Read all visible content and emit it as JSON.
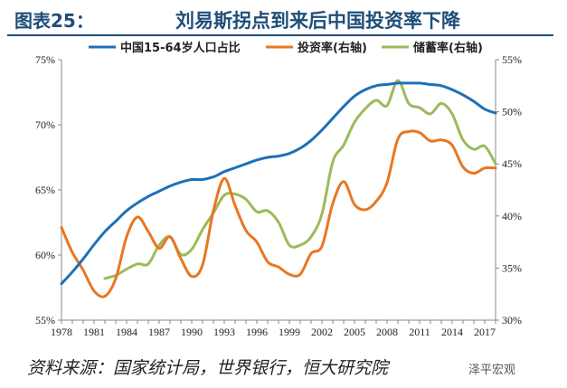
{
  "figure": {
    "number": "图表25：",
    "title": "刘易斯拐点到来后中国投资率下降"
  },
  "source_note": "资料来源：国家统计局，世界银行，恒大研究院",
  "watermark": "泽平宏观",
  "colors": {
    "title": "#1f4e79",
    "working_age": "#1f6fb8",
    "investment": "#e87722",
    "savings": "#9bbb59"
  },
  "chart_data": {
    "type": "line",
    "title": "",
    "xlabel": "",
    "ylabel": "",
    "x_ticks": [
      "1978",
      "1981",
      "1984",
      "1987",
      "1990",
      "1993",
      "1996",
      "1999",
      "2002",
      "2005",
      "2008",
      "2011",
      "2014",
      "2017"
    ],
    "xlim": [
      1978,
      2018
    ],
    "y_left": {
      "lim": [
        55,
        75
      ],
      "ticks": [
        "55%",
        "60%",
        "65%",
        "70%",
        "75%"
      ],
      "values": [
        55,
        60,
        65,
        70,
        75
      ]
    },
    "y_right": {
      "lim": [
        30,
        55
      ],
      "ticks": [
        "30%",
        "35%",
        "40%",
        "45%",
        "50%",
        "55%"
      ],
      "values": [
        30,
        35,
        40,
        45,
        50,
        55
      ]
    },
    "legend": {
      "position": "top"
    },
    "grid": false,
    "series": [
      {
        "name": "中国15-64岁人口占比",
        "axis": "left",
        "color": "#1f6fb8",
        "x": [
          1978,
          1979,
          1980,
          1981,
          1982,
          1983,
          1984,
          1985,
          1986,
          1987,
          1988,
          1989,
          1990,
          1991,
          1992,
          1993,
          1994,
          1995,
          1996,
          1997,
          1998,
          1999,
          2000,
          2001,
          2002,
          2003,
          2004,
          2005,
          2006,
          2007,
          2008,
          2009,
          2010,
          2011,
          2012,
          2013,
          2014,
          2015,
          2016,
          2017,
          2018
        ],
        "y": [
          57.8,
          58.7,
          59.7,
          60.8,
          61.8,
          62.6,
          63.4,
          64.0,
          64.5,
          64.9,
          65.3,
          65.6,
          65.8,
          65.8,
          66.0,
          66.4,
          66.7,
          67.0,
          67.3,
          67.5,
          67.6,
          67.8,
          68.2,
          68.8,
          69.6,
          70.5,
          71.4,
          72.2,
          72.7,
          73.0,
          73.1,
          73.2,
          73.2,
          73.2,
          73.1,
          73.0,
          72.7,
          72.3,
          71.8,
          71.2,
          70.9
        ]
      },
      {
        "name": "投资率(右轴)",
        "axis": "right",
        "color": "#e87722",
        "x": [
          1978,
          1979,
          1980,
          1981,
          1982,
          1983,
          1984,
          1985,
          1986,
          1987,
          1988,
          1989,
          1990,
          1991,
          1992,
          1993,
          1994,
          1995,
          1996,
          1997,
          1998,
          1999,
          2000,
          2001,
          2002,
          2003,
          2004,
          2005,
          2006,
          2007,
          2008,
          2009,
          2010,
          2011,
          2012,
          2013,
          2014,
          2015,
          2016,
          2017,
          2018
        ],
        "y": [
          38.9,
          36.5,
          34.8,
          32.8,
          32.3,
          34.0,
          38.0,
          39.9,
          38.5,
          36.9,
          38.0,
          35.9,
          34.2,
          35.3,
          40.5,
          43.6,
          41.0,
          38.6,
          37.5,
          35.6,
          35.1,
          34.4,
          34.4,
          36.4,
          37.1,
          41.2,
          43.3,
          41.1,
          40.6,
          41.4,
          43.2,
          47.4,
          48.1,
          48.0,
          47.2,
          47.3,
          46.8,
          44.7,
          44.1,
          44.6,
          44.6
        ]
      },
      {
        "name": "储蓄率(右轴)",
        "axis": "right",
        "color": "#9bbb59",
        "x": [
          1982,
          1983,
          1984,
          1985,
          1986,
          1987,
          1988,
          1989,
          1990,
          1991,
          1992,
          1993,
          1994,
          1995,
          1996,
          1997,
          1998,
          1999,
          2000,
          2001,
          2002,
          2003,
          2004,
          2005,
          2006,
          2007,
          2008,
          2009,
          2010,
          2011,
          2012,
          2013,
          2014,
          2015,
          2016,
          2017,
          2018
        ],
        "y": [
          34.0,
          34.3,
          34.9,
          35.4,
          35.4,
          37.2,
          38.0,
          36.3,
          36.8,
          38.7,
          40.3,
          42.0,
          42.1,
          41.6,
          40.4,
          40.5,
          39.4,
          37.2,
          37.2,
          38.0,
          40.2,
          45.2,
          46.8,
          49.0,
          50.3,
          51.1,
          50.6,
          53.0,
          50.8,
          50.4,
          49.8,
          50.8,
          49.8,
          47.3,
          46.4,
          46.7,
          45.0
        ]
      }
    ]
  }
}
